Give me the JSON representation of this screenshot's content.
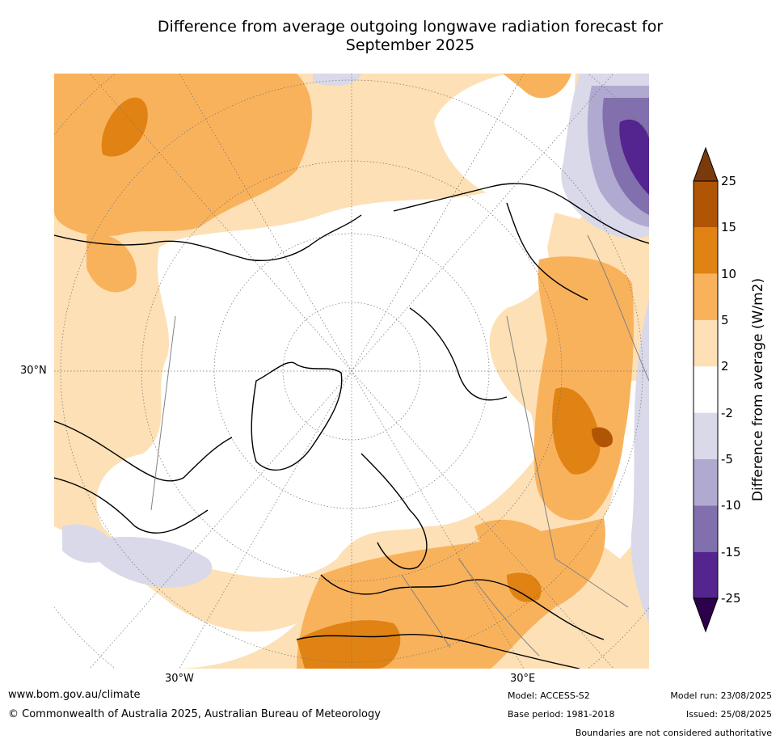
{
  "title_line1": "Difference from average outgoing longwave radiation forecast for",
  "title_line2": "September 2025",
  "map": {
    "lat_label": "30°N",
    "lon_labels": [
      "30°W",
      "30°E"
    ],
    "anomaly_colors": {
      "above_25": "#7a3a0c",
      "15_to_25": "#b05506",
      "10_to_15": "#e08314",
      "5_to_10": "#f9b25c",
      "2_to_5": "#fde0b5",
      "neutral": "#ffffff",
      "minus2_to_minus5": "#d9d9ea",
      "minus5_to_minus10": "#b1aad0",
      "minus10_to_minus15": "#8270ae",
      "minus15_to_minus25": "#54248f",
      "below_minus25": "#2d004b"
    }
  },
  "colorbar": {
    "label": "Difference from average (W/m2)",
    "ticks": [
      "25",
      "15",
      "10",
      "5",
      "2",
      "-2",
      "-5",
      "-10",
      "-15",
      "-25"
    ],
    "colors": [
      "#b05506",
      "#e08314",
      "#f9b25c",
      "#fde0b5",
      "#ffffff",
      "#d9d9ea",
      "#b1aad0",
      "#8270ae",
      "#54248f"
    ],
    "extend_top_color": "#7a3a0c",
    "extend_bottom_color": "#2d004b"
  },
  "footer": {
    "website": "www.bom.gov.au/climate",
    "copyright": "© Commonwealth of Australia 2025, Australian Bureau of Meteorology",
    "model": "Model: ACCESS-S2",
    "base_period": "Base period: 1981-2018",
    "model_run": "Model run: 23/08/2025",
    "issued": "Issued: 25/08/2025",
    "disclaimer": "Boundaries are not considered authoritative"
  }
}
